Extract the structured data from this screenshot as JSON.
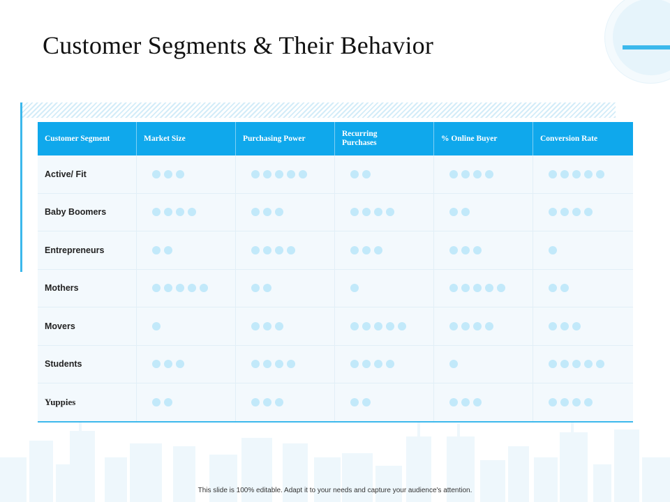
{
  "title": "Customer Segments & Their Behavior",
  "accent_color": "#0fa8ec",
  "dot_color": "#c2e9fa",
  "headers": [
    "Customer Segment",
    "Market Size",
    "Purchasing Power",
    "Recurring Purchases",
    "% Online Buyer",
    "Conversion Rate"
  ],
  "rows": [
    {
      "label": "Active/ Fit",
      "ratings": [
        3,
        5,
        2,
        4,
        5
      ]
    },
    {
      "label": "Baby Boomers",
      "ratings": [
        4,
        3,
        4,
        2,
        4
      ]
    },
    {
      "label": "Entrepreneurs",
      "ratings": [
        2,
        4,
        3,
        3,
        1
      ]
    },
    {
      "label": "Mothers",
      "ratings": [
        5,
        2,
        1,
        5,
        2
      ]
    },
    {
      "label": "Movers",
      "ratings": [
        1,
        3,
        5,
        4,
        3
      ]
    },
    {
      "label": "Students",
      "ratings": [
        3,
        4,
        4,
        1,
        5
      ]
    },
    {
      "label": "Yuppies",
      "ratings": [
        2,
        3,
        2,
        3,
        4
      ]
    }
  ],
  "footer": "This slide is 100% editable. Adapt it to your needs and capture your audience's attention."
}
